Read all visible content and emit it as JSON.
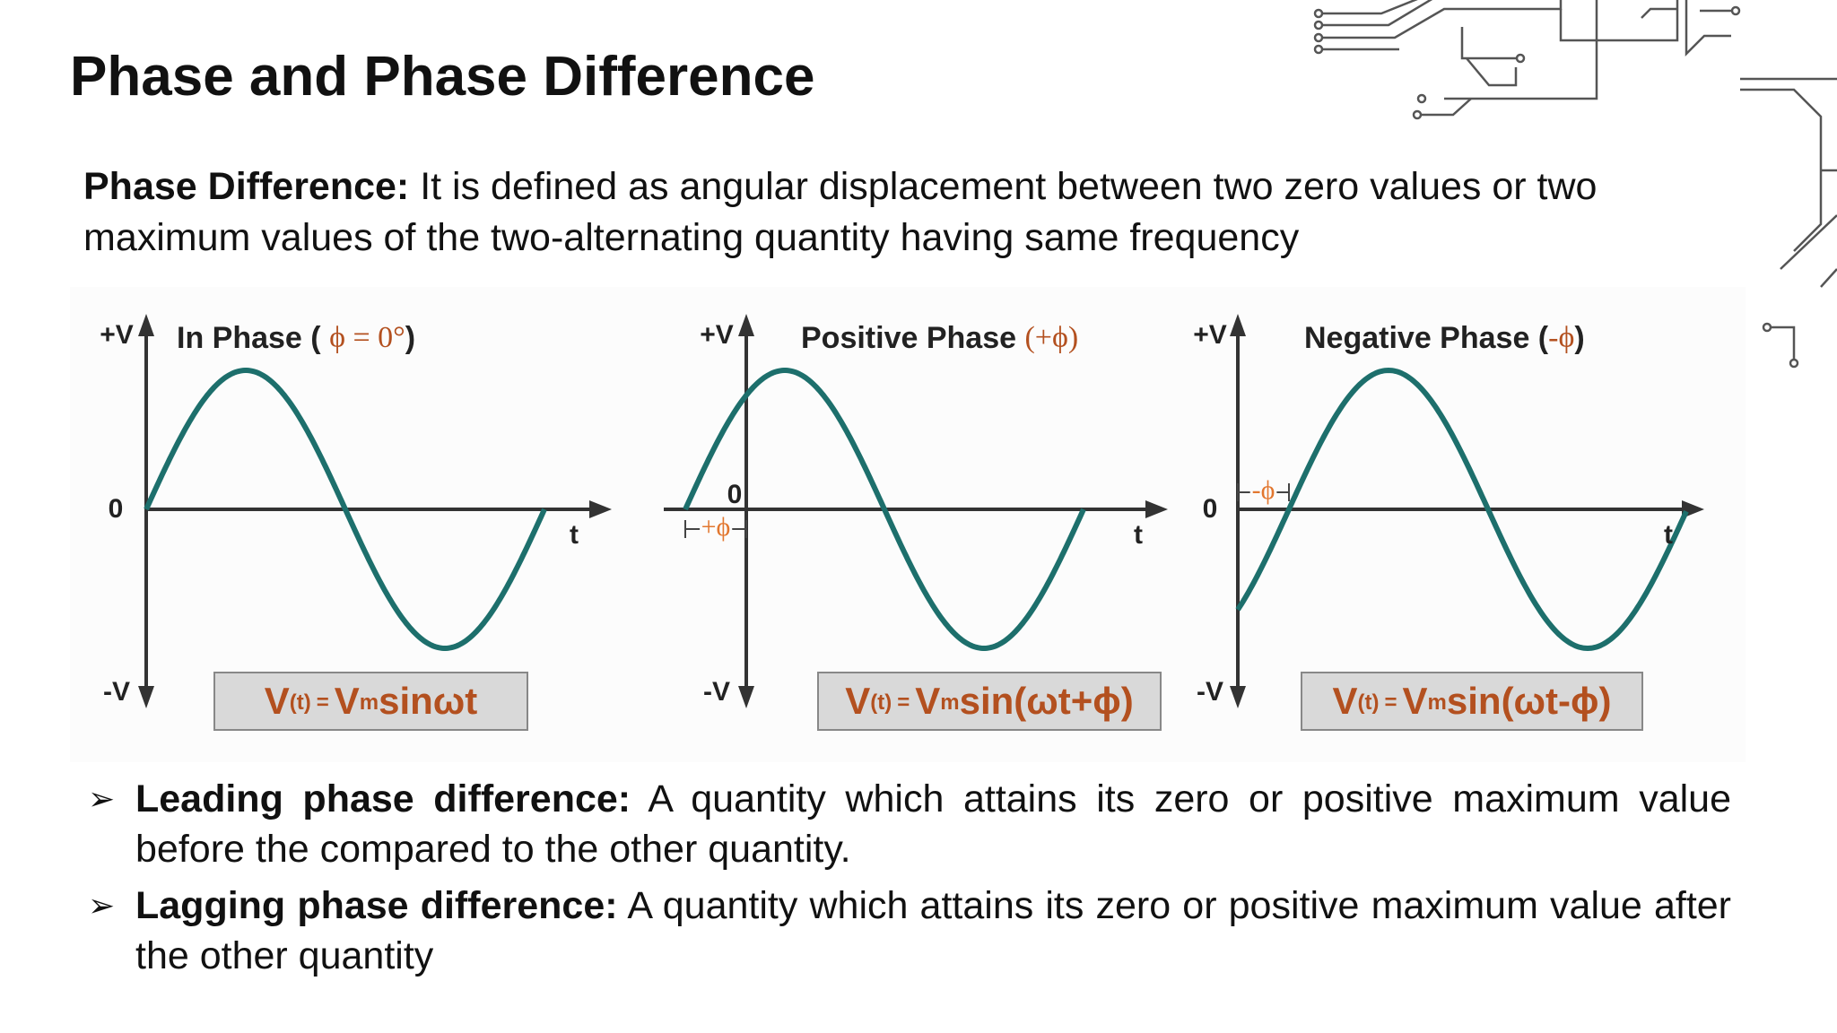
{
  "header": {
    "title": "Phase and Phase Difference"
  },
  "definition": {
    "term": "Phase Difference:",
    "text": "It is defined as angular displacement between two zero values or two maximum values of the two-alternating quantity having same frequency"
  },
  "figure": {
    "panels": [
      {
        "title": [
          "In Phase ( ",
          "ϕ = 0°",
          ")"
        ],
        "axis": {
          "pos": "+V",
          "zero": "0",
          "neg": "-V",
          "time": "t"
        },
        "formula": {
          "v": "V",
          "arg": "(t)",
          "eq": "=",
          "vm": "V",
          "sub": "m",
          "expr": "sinωt"
        }
      },
      {
        "title": [
          "Positive Phase ",
          "(+ϕ)",
          ""
        ],
        "axis": {
          "pos": "+V",
          "zero": "0",
          "neg": "-V",
          "time": "t"
        },
        "phase_label": "+ϕ",
        "formula": {
          "v": "V",
          "arg": "(t)",
          "eq": "=",
          "vm": "V",
          "sub": "m",
          "expr": "sin(ωt+ϕ)"
        }
      },
      {
        "title": [
          "Negative Phase (",
          "-ϕ",
          ")"
        ],
        "axis": {
          "pos": "+V",
          "zero": "0",
          "neg": "-V",
          "time": "t"
        },
        "phase_label": "-ϕ",
        "formula": {
          "v": "V",
          "arg": "(t)",
          "eq": "=",
          "vm": "V",
          "sub": "m",
          "expr": "sin(ωt-ϕ)"
        }
      }
    ]
  },
  "bullets": [
    {
      "term": "Leading phase difference:",
      "text": "A quantity which attains its zero or positive maximum value before the compared to the other quantity."
    },
    {
      "term": "Lagging phase difference:",
      "text": "A quantity which attains its zero or positive maximum value after the other quantity"
    }
  ]
}
